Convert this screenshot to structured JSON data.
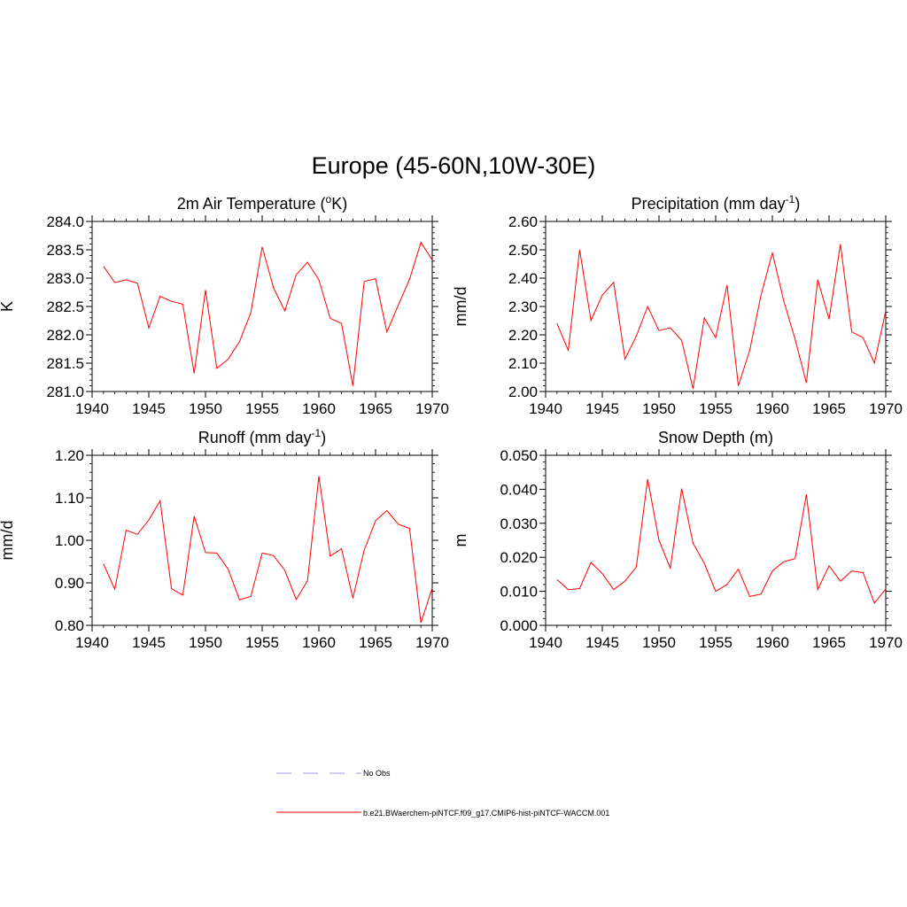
{
  "figure": {
    "title": "Europe (45-60N,10W-30E)"
  },
  "colors": {
    "model_line": "#ff0000",
    "obs_line": "#9999dd",
    "axis": "#000000"
  },
  "legend": {
    "items": [
      {
        "label": "No Obs",
        "style": "dashed",
        "color": "#9999dd"
      },
      {
        "label": "b.e21.BWaerchem-piNTCF.f09_g17.CMIP6-hist-piNTCF-WACCM.001",
        "style": "solid",
        "color": "#ff0000"
      }
    ]
  },
  "chart_data": [
    {
      "type": "line",
      "title": "2m Air Temperature (",
      "title_sup": "o",
      "title_post": "K)",
      "ylabel": "K",
      "xlim": [
        1940,
        1970
      ],
      "ylim": [
        281.0,
        284.0
      ],
      "xticks": [
        1940,
        1945,
        1950,
        1955,
        1960,
        1965,
        1970
      ],
      "yticks": [
        281.0,
        281.5,
        282.0,
        282.5,
        283.0,
        283.5,
        284.0
      ],
      "ytick_labels": [
        "281.0",
        "281.5",
        "282.0",
        "282.5",
        "283.0",
        "283.5",
        "284.0"
      ],
      "series": [
        {
          "color": "#ff0000",
          "x": [
            1941,
            1942,
            1943,
            1944,
            1945,
            1946,
            1947,
            1948,
            1949,
            1950,
            1951,
            1952,
            1953,
            1954,
            1955,
            1956,
            1957,
            1958,
            1959,
            1960,
            1961,
            1962,
            1963,
            1964,
            1965,
            1966,
            1967,
            1968,
            1969,
            1970
          ],
          "y": [
            283.21,
            282.92,
            282.97,
            282.91,
            282.12,
            282.68,
            282.59,
            282.54,
            281.32,
            282.79,
            281.41,
            281.57,
            281.88,
            282.39,
            283.55,
            282.83,
            282.42,
            283.06,
            283.28,
            282.97,
            282.29,
            282.2,
            281.1,
            282.94,
            282.99,
            282.05,
            282.52,
            282.98,
            283.63,
            283.32
          ]
        }
      ]
    },
    {
      "type": "line",
      "title": "Precipitation (mm day",
      "title_sup": "-1",
      "title_post": ")",
      "ylabel": "mm/d",
      "xlim": [
        1940,
        1970
      ],
      "ylim": [
        2.0,
        2.6
      ],
      "xticks": [
        1940,
        1945,
        1950,
        1955,
        1960,
        1965,
        1970
      ],
      "yticks": [
        2.0,
        2.1,
        2.2,
        2.3,
        2.4,
        2.5,
        2.6
      ],
      "ytick_labels": [
        "2.00",
        "2.10",
        "2.20",
        "2.30",
        "2.40",
        "2.50",
        "2.60"
      ],
      "series": [
        {
          "color": "#ff0000",
          "x": [
            1941,
            1942,
            1943,
            1944,
            1945,
            1946,
            1947,
            1948,
            1949,
            1950,
            1951,
            1952,
            1953,
            1954,
            1955,
            1956,
            1957,
            1958,
            1959,
            1960,
            1961,
            1962,
            1963,
            1964,
            1965,
            1966,
            1967,
            1968,
            1969,
            1970
          ],
          "y": [
            2.24,
            2.145,
            2.5,
            2.25,
            2.34,
            2.385,
            2.115,
            2.195,
            2.3,
            2.215,
            2.225,
            2.18,
            2.01,
            2.26,
            2.19,
            2.375,
            2.02,
            2.145,
            2.34,
            2.49,
            2.32,
            2.185,
            2.03,
            2.395,
            2.255,
            2.52,
            2.21,
            2.19,
            2.1,
            2.285
          ]
        }
      ]
    },
    {
      "type": "line",
      "title": "Runoff (mm day",
      "title_sup": "-1",
      "title_post": ")",
      "ylabel": "mm/d",
      "xlim": [
        1940,
        1970
      ],
      "ylim": [
        0.8,
        1.2
      ],
      "xticks": [
        1940,
        1945,
        1950,
        1955,
        1960,
        1965,
        1970
      ],
      "yticks": [
        0.8,
        0.9,
        1.0,
        1.1,
        1.2
      ],
      "ytick_labels": [
        "0.80",
        "0.90",
        "1.00",
        "1.10",
        "1.20"
      ],
      "series": [
        {
          "color": "#ff0000",
          "x": [
            1941,
            1942,
            1943,
            1944,
            1945,
            1946,
            1947,
            1948,
            1949,
            1950,
            1951,
            1952,
            1953,
            1954,
            1955,
            1956,
            1957,
            1958,
            1959,
            1960,
            1961,
            1962,
            1963,
            1964,
            1965,
            1966,
            1967,
            1968,
            1969,
            1970
          ],
          "y": [
            0.945,
            0.885,
            1.024,
            1.014,
            1.048,
            1.093,
            0.886,
            0.871,
            1.057,
            0.971,
            0.97,
            0.932,
            0.86,
            0.868,
            0.97,
            0.964,
            0.929,
            0.861,
            0.905,
            1.151,
            0.963,
            0.98,
            0.864,
            0.977,
            1.046,
            1.07,
            1.038,
            1.028,
            0.806,
            0.888
          ]
        }
      ]
    },
    {
      "type": "line",
      "title": "Snow Depth (m)",
      "title_sup": "",
      "title_post": "",
      "ylabel": "m",
      "xlim": [
        1940,
        1970
      ],
      "ylim": [
        0.0,
        0.05
      ],
      "xticks": [
        1940,
        1945,
        1950,
        1955,
        1960,
        1965,
        1970
      ],
      "yticks": [
        0.0,
        0.01,
        0.02,
        0.03,
        0.04,
        0.05
      ],
      "ytick_labels": [
        "0.000",
        "0.010",
        "0.020",
        "0.030",
        "0.040",
        "0.050"
      ],
      "series": [
        {
          "color": "#ff0000",
          "x": [
            1941,
            1942,
            1943,
            1944,
            1945,
            1946,
            1947,
            1948,
            1949,
            1950,
            1951,
            1952,
            1953,
            1954,
            1955,
            1956,
            1957,
            1958,
            1959,
            1960,
            1961,
            1962,
            1963,
            1964,
            1965,
            1966,
            1967,
            1968,
            1969,
            1970
          ],
          "y": [
            0.0135,
            0.0105,
            0.0108,
            0.0185,
            0.0152,
            0.0105,
            0.013,
            0.0172,
            0.043,
            0.025,
            0.0168,
            0.0402,
            0.0242,
            0.0182,
            0.01,
            0.012,
            0.0165,
            0.0085,
            0.0092,
            0.016,
            0.0187,
            0.0196,
            0.0385,
            0.0105,
            0.0175,
            0.013,
            0.016,
            0.0155,
            0.0065,
            0.0107
          ]
        }
      ]
    }
  ]
}
